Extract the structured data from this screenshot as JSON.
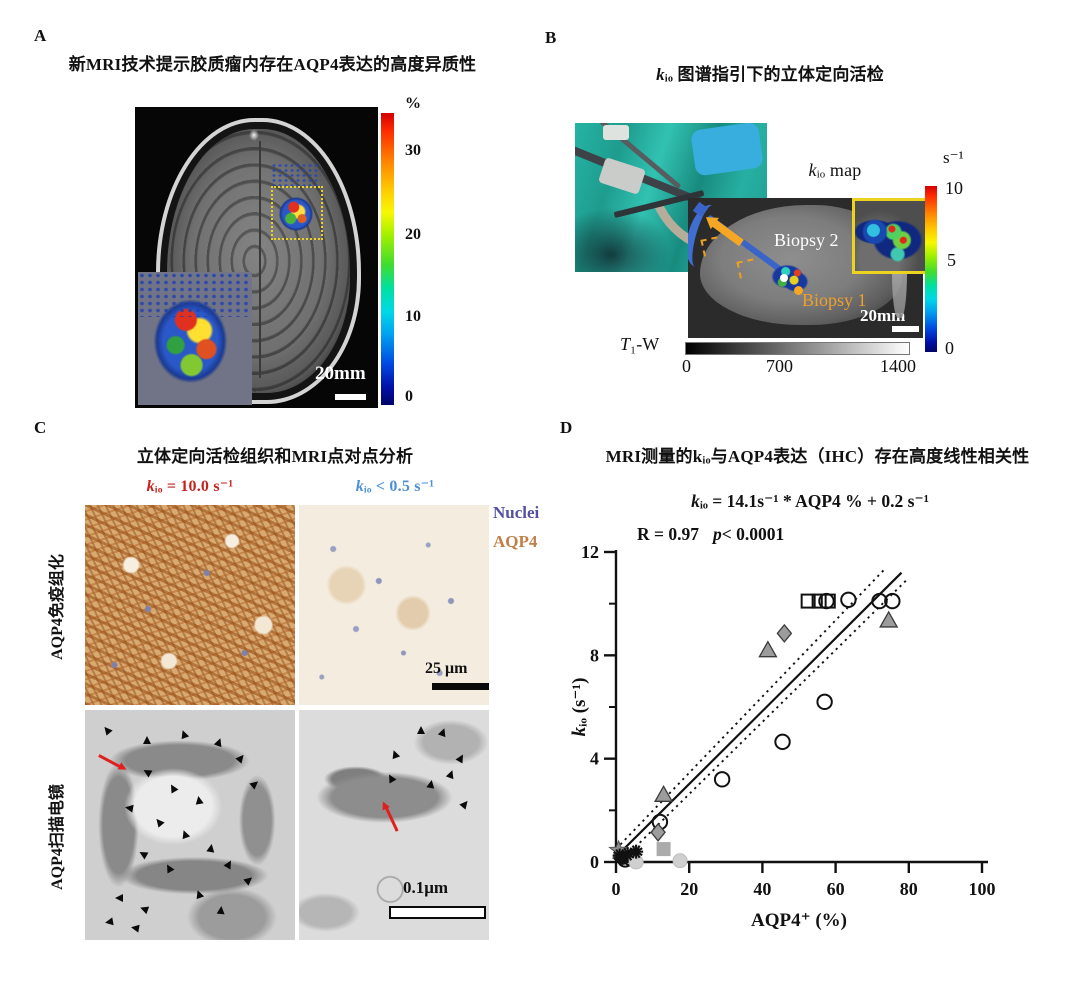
{
  "figure": {
    "panel_a": {
      "label": "A",
      "title": "新MRI技术提示胶质瘤内存在AQP4表达的高度异质性",
      "scale_bar": "20mm",
      "colorbar": {
        "unit": "%",
        "ticks": [
          "30",
          "20",
          "10",
          "0"
        ]
      }
    },
    "panel_b": {
      "label": "B",
      "title": "kᵢₒ 图谱指引下的立体定向活检",
      "map_label": "kᵢₒ map",
      "biopsy2": "Biopsy 2",
      "biopsy1": "Biopsy 1",
      "scale_bar": "20mm",
      "colorbar": {
        "unit": "s⁻¹",
        "ticks": [
          "10",
          "5",
          "0"
        ]
      },
      "grayscale": {
        "label": "T₁-W",
        "ticks": [
          "0",
          "700",
          "1400"
        ]
      }
    },
    "panel_c": {
      "label": "C",
      "title": "立体定向活检组织和MRI点对点分析",
      "col_left_label": "kᵢₒ = 10.0 s⁻¹",
      "col_right_label": "kᵢₒ < 0.5 s⁻¹",
      "row1_label": "AQP4免疫组化",
      "row2_label": "AQP4扫描电镜",
      "legend": {
        "nuclei": "Nuclei",
        "aqp4": "AQP4"
      },
      "scale_bar_top": "25 μm",
      "scale_bar_bottom": "0.1μm",
      "colors": {
        "col_left": "#c4231f",
        "col_right": "#4b90d6",
        "nuclei": "#55509f",
        "aqp4": "#c08048"
      }
    },
    "panel_d": {
      "label": "D",
      "title": "MRI测量的kᵢₒ与AQP4表达（IHC）存在高度线性相关性",
      "equation": "kᵢₒ = 14.1s⁻¹ * AQP4 % + 0.2 s⁻¹",
      "stats_r": "R = 0.97",
      "stats_p": "p< 0.0001"
    }
  },
  "chart_data": {
    "type": "scatter",
    "title": "MRI测量的kᵢₒ与AQP4表达（IHC）存在高度线性相关性",
    "equation": "kᵢₒ = 14.1s⁻¹ * AQP4 % + 0.2 s⁻¹",
    "r_value": 0.97,
    "p_value": "< 0.0001",
    "xlabel": "AQP4⁺ (%)",
    "ylabel": "kᵢₒ (s⁻¹)",
    "xlim": [
      0,
      100
    ],
    "ylim": [
      0,
      12
    ],
    "xticks": [
      0,
      20,
      40,
      60,
      80,
      100
    ],
    "yticks_major": [
      0,
      4,
      8,
      12
    ],
    "yticks_minor": [
      2,
      6,
      10
    ],
    "grid": false,
    "legend_position": "none",
    "fit_lines": [
      {
        "style": "solid",
        "from": [
          0,
          0.2
        ],
        "to": [
          78,
          11.2
        ]
      },
      {
        "style": "dotted",
        "from": [
          0,
          0.5
        ],
        "to": [
          73.5,
          11.35
        ]
      },
      {
        "style": "dotted",
        "from": [
          1.5,
          0.05
        ],
        "to": [
          80,
          11.0
        ]
      }
    ],
    "series": [
      {
        "name": "open-circle",
        "marker": "circle-open",
        "points": [
          [
            57.5,
            10.1
          ],
          [
            63.5,
            10.15
          ],
          [
            72,
            10.1
          ],
          [
            75.5,
            10.1
          ],
          [
            57,
            6.2
          ],
          [
            45.5,
            4.65
          ],
          [
            29,
            3.2
          ],
          [
            12,
            1.55
          ],
          [
            2.5,
            0.1
          ],
          [
            4,
            0.15
          ]
        ]
      },
      {
        "name": "open-square",
        "marker": "square-open",
        "points": [
          [
            52.5,
            10.1
          ],
          [
            55.5,
            10.1
          ],
          [
            58,
            10.1
          ]
        ]
      },
      {
        "name": "gray-triangle",
        "marker": "triangle-gray",
        "points": [
          [
            41.5,
            8.2
          ],
          [
            74.5,
            9.35
          ],
          [
            13,
            2.6
          ]
        ]
      },
      {
        "name": "gray-diamond",
        "marker": "diamond-gray",
        "points": [
          [
            46,
            8.85
          ],
          [
            11.5,
            1.15
          ]
        ]
      },
      {
        "name": "gray-square",
        "marker": "square-gray",
        "points": [
          [
            13,
            0.5
          ]
        ]
      },
      {
        "name": "gray-circle",
        "marker": "circle-gray",
        "points": [
          [
            17.5,
            0.05
          ],
          [
            5.5,
            0
          ]
        ]
      },
      {
        "name": "gray-star",
        "marker": "star-gray",
        "points": [
          [
            0.7,
            0.45
          ]
        ]
      },
      {
        "name": "black-dot",
        "marker": "circle-black",
        "points": [
          [
            1.8,
            0.12
          ]
        ]
      },
      {
        "name": "black-asterisk",
        "marker": "asterisk-black",
        "points": [
          [
            1,
            0.25
          ],
          [
            3.2,
            0.3
          ],
          [
            5.5,
            0.4
          ]
        ]
      }
    ]
  }
}
